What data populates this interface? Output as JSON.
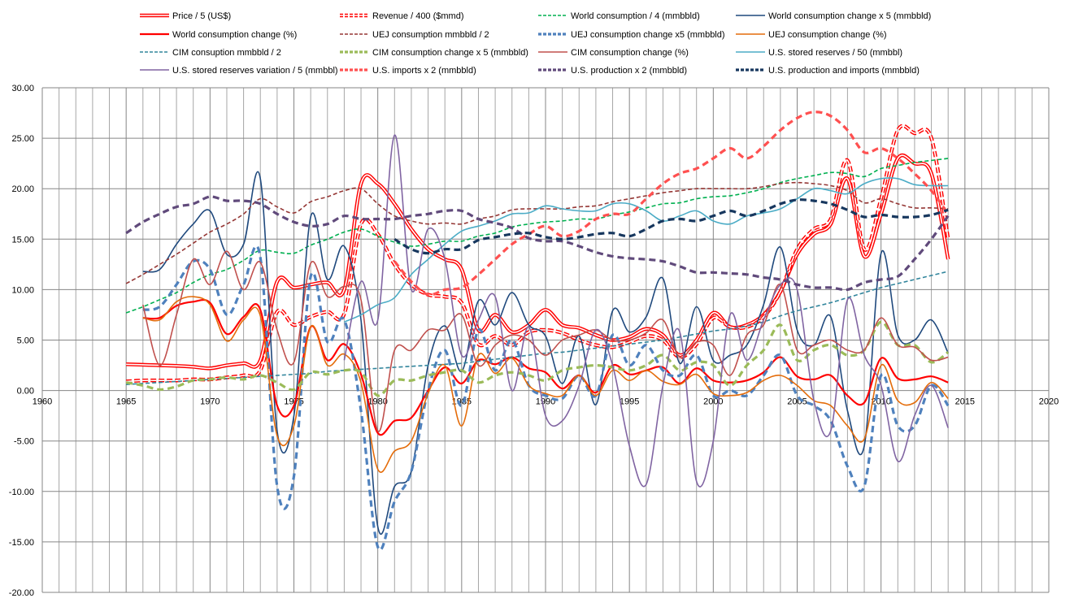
{
  "chart_data": {
    "type": "line",
    "title": "",
    "xlabel": "",
    "ylabel": "",
    "xlim": [
      1960,
      2020
    ],
    "ylim": [
      -20,
      30
    ],
    "x_ticks": [
      1960,
      1965,
      1970,
      1975,
      1980,
      1985,
      1990,
      1995,
      2000,
      2005,
      2010,
      2015,
      2020
    ],
    "y_ticks": [
      "30.00",
      "25.00",
      "20.00",
      "15.00",
      "10.00",
      "5.00",
      "0.00",
      "-5.00",
      "-10.00",
      "-15.00",
      "-20.00"
    ],
    "y_tick_values": [
      30,
      25,
      20,
      15,
      10,
      5,
      0,
      -5,
      -10,
      -15,
      -20
    ],
    "grid": true,
    "legend_position": "top",
    "series": [
      {
        "name": "Price / 5 (US$)",
        "color": "#ff0000",
        "style": "double",
        "start": 1965,
        "values": [
          2.6,
          2.55,
          2.5,
          2.45,
          2.35,
          2.2,
          2.5,
          2.7,
          3.0,
          10.8,
          10.2,
          10.5,
          10.7,
          10.0,
          20.5,
          20.5,
          18.5,
          16,
          14,
          13,
          12,
          6,
          7.5,
          5.8,
          6.5,
          8.0,
          6.5,
          6.2,
          5.5,
          5.0,
          5.3,
          6.1,
          5.5,
          3.5,
          5.0,
          7.7,
          6.3,
          6.5,
          7.5,
          9.8,
          13.5,
          15.5,
          16.5,
          21,
          13.3,
          17.5,
          23,
          22.5,
          21.5,
          13
        ]
      },
      {
        "name": "Revenue / 400 ($mmd)",
        "color": "#ff0000",
        "style": "double-dash",
        "start": 1965,
        "values": [
          0.9,
          1.0,
          1.0,
          1.0,
          1.1,
          1.1,
          1.3,
          1.5,
          2.0,
          7.8,
          6.5,
          7.3,
          7.8,
          7.6,
          16.5,
          15.5,
          12.5,
          10.5,
          9.5,
          9.3,
          8.7,
          4.6,
          5.4,
          4.5,
          5.8,
          6.0,
          5.7,
          5.0,
          4.5,
          4.3,
          4.8,
          5.4,
          5.0,
          3.3,
          4.6,
          7.2,
          6.3,
          6.3,
          7.3,
          9.8,
          14,
          16,
          17,
          22.8,
          14.0,
          19,
          25.8,
          25.5,
          25.0,
          15
        ]
      },
      {
        "name": "World consumption / 4 (mmbbld)",
        "color": "#00b050",
        "style": "dash-thin",
        "start": 1965,
        "values": [
          7.7,
          8.3,
          9.0,
          9.7,
          10.7,
          11.5,
          12.0,
          12.9,
          13.9,
          13.7,
          13.6,
          14.4,
          15.0,
          15.7,
          16.0,
          15.3,
          14.7,
          14.3,
          14.5,
          14.8,
          14.8,
          15.3,
          15.6,
          16.2,
          16.5,
          16.7,
          16.8,
          17.0,
          17.0,
          17.4,
          17.7,
          18.1,
          18.5,
          18.6,
          19.0,
          19.2,
          19.3,
          19.6,
          20.0,
          20.6,
          21.0,
          21.3,
          21.6,
          21.5,
          21.2,
          22.0,
          22.3,
          22.6,
          22.8,
          23.0
        ]
      },
      {
        "name": "World consumption change x 5 (mmbbld)",
        "color": "#1f497d",
        "style": "solid",
        "start": 1966,
        "values": [
          11.8,
          12.0,
          14.5,
          16.5,
          17.8,
          13.5,
          14.5,
          21.0,
          -4.0,
          -2.5,
          17.2,
          11.0,
          14.3,
          7.0,
          -13.5,
          -9.5,
          -8,
          2.5,
          6.4,
          1.9,
          8.9,
          6.5,
          9.7,
          6.5,
          5.4,
          0.7,
          5.4,
          -1.4,
          7.9,
          5.8,
          7.3,
          11.1,
          2.7,
          8.3,
          3.0,
          3.5,
          4.5,
          8.5,
          14.2,
          6,
          4.5,
          7.3,
          -2,
          -5.5,
          13.6,
          5.5,
          5,
          7,
          3.7
        ]
      },
      {
        "name": "World consumption change (%)",
        "color": "#ff0000",
        "style": "solid-thick",
        "start": 1966,
        "values": [
          7.2,
          7.2,
          8.4,
          8.8,
          8.7,
          5.6,
          7.3,
          8.0,
          -1.5,
          -1.5,
          6.3,
          3.0,
          4.6,
          1.6,
          -4.2,
          -3.0,
          -2.7,
          0,
          2.3,
          0.7,
          3.0,
          2.6,
          3.3,
          2.2,
          1.8,
          0.2,
          1.5,
          -0.2,
          2.5,
          1.6,
          2.0,
          2.3,
          0.7,
          2.2,
          1.0,
          0.8,
          1.0,
          1.8,
          3.3,
          1.4,
          1.1,
          1.5,
          -0.5,
          -1.2,
          3.2,
          1.2,
          1.1,
          1.4,
          0.8
        ]
      },
      {
        "name": "UEJ consumption mmbbld / 2",
        "color": "#953735",
        "style": "dash-thin",
        "start": 1965,
        "values": [
          10.6,
          11.5,
          12.5,
          13.5,
          14.6,
          15.7,
          16.5,
          17.5,
          19.0,
          18.2,
          17.6,
          18.7,
          19.2,
          19.8,
          20.0,
          18.5,
          17.3,
          16.8,
          16.5,
          16.6,
          16.5,
          17.0,
          17.3,
          17.9,
          18.0,
          18.0,
          18.0,
          18.2,
          18.3,
          18.7,
          19.0,
          19.3,
          19.6,
          19.8,
          20.0,
          20.0,
          20.0,
          20.0,
          20.2,
          20.5,
          20.6,
          20.5,
          20.3,
          19.8,
          18.6,
          19.0,
          18.5,
          18.1,
          18.1,
          18.0
        ]
      },
      {
        "name": "UEJ consumption change x5 (mmbbld)",
        "color": "#4f81bd",
        "style": "dash-thick",
        "start": 1966,
        "values": [
          8.0,
          8.3,
          10.5,
          12.8,
          12.0,
          7.5,
          10.5,
          13.2,
          -9.5,
          -8.5,
          11.3,
          4.8,
          7.0,
          -2,
          -15.5,
          -11,
          -8,
          0.0,
          4.0,
          -1.5,
          6.0,
          2.0,
          5.0,
          0.5,
          -0.5,
          -0.8,
          1.5,
          -0.5,
          5.5,
          2.5,
          4.5,
          2.0,
          1.5,
          3.5,
          -0.5,
          0.0,
          -0.5,
          1.5,
          3.5,
          -0.5,
          -1.5,
          -3,
          -7.5,
          -9.5,
          1.5,
          -3.5,
          -3.5,
          0.5,
          -1.5
        ]
      },
      {
        "name": "UEJ consumption change (%)",
        "color": "#e46c0a",
        "style": "solid",
        "start": 1966,
        "values": [
          7.2,
          7.0,
          8.8,
          9.3,
          8.5,
          4.9,
          7.0,
          7.4,
          -4.5,
          -3.5,
          6.3,
          2.5,
          3.6,
          0.8,
          -7.8,
          -6,
          -5,
          -0.3,
          2.5,
          -3.5,
          3.5,
          1.7,
          3.2,
          0.5,
          -0.3,
          -0.5,
          1.5,
          -0.5,
          2.0,
          1.0,
          2.0,
          0.9,
          0.6,
          1.6,
          -0.3,
          -0.5,
          -0.2,
          1.0,
          1.5,
          0.5,
          -1.0,
          -1.5,
          -3.5,
          -4.8,
          2.5,
          -1.0,
          -1.2,
          0.8,
          -0.8
        ]
      },
      {
        "name": "CIM consuption mmbbld / 2",
        "color": "#31859c",
        "style": "dash-thin",
        "start": 1965,
        "values": [
          0.6,
          0.7,
          0.8,
          0.9,
          1.0,
          1.1,
          1.2,
          1.3,
          1.4,
          1.5,
          1.6,
          1.7,
          1.9,
          2.0,
          2.1,
          2.2,
          2.3,
          2.4,
          2.5,
          2.6,
          2.7,
          2.9,
          3.1,
          3.3,
          3.5,
          3.7,
          3.8,
          4.0,
          4.2,
          4.4,
          4.6,
          4.8,
          5.0,
          5.3,
          5.6,
          5.9,
          6.1,
          6.4,
          6.8,
          7.4,
          7.9,
          8.3,
          8.7,
          9.2,
          9.7,
          10.2,
          10.6,
          11.0,
          11.4,
          11.8
        ]
      },
      {
        "name": "CIM consumption change x 5 (mmbbld)",
        "color": "#9bbb59",
        "style": "dash-thick",
        "start": 1965,
        "values": [
          0.8,
          0.5,
          0.1,
          0.4,
          1.0,
          1.1,
          1.3,
          1.1,
          1.5,
          0.8,
          0.1,
          1.8,
          1.6,
          2.0,
          1.8,
          -0.5,
          1.0,
          1.0,
          1.5,
          1.8,
          2.0,
          0.8,
          1.5,
          1.8,
          1.5,
          1.0,
          2.0,
          2.3,
          2.5,
          2.3,
          2.0,
          2.5,
          3.5,
          2.0,
          2.8,
          2.5,
          0.5,
          2.5,
          4.0,
          6.5,
          3.0,
          4.0,
          4.5,
          3.5,
          4.0,
          6.8,
          4.5,
          4.5,
          2.8,
          3.8
        ]
      },
      {
        "name": "CIM consumption change (%)",
        "color": "#c0504d",
        "style": "solid",
        "start": 1966,
        "values": [
          8.5,
          2.5,
          7.5,
          13,
          10.5,
          13.8,
          10.0,
          12.7,
          6,
          2.8,
          12.6,
          9.3,
          10.3,
          9.0,
          -4.0,
          4.0,
          4.0,
          6.0,
          6.0,
          7.5,
          2.5,
          4.5,
          5.5,
          5.0,
          3.5,
          5.0,
          5.5,
          6.0,
          5.0,
          5.0,
          5.7,
          7.0,
          3.3,
          4.8,
          4.5,
          1.5,
          5.5,
          6.5,
          10.5,
          4.0,
          4.5,
          5.0,
          4.0,
          4.0,
          7.2,
          4.5,
          4.3,
          3.0,
          3.3
        ]
      },
      {
        "name": "U.S. stored reserves / 50 (mmbbl)",
        "color": "#4bacc6",
        "style": "solid",
        "start": 1978,
        "values": [
          6.8,
          7.5,
          8.5,
          9.2,
          11.5,
          13.0,
          14.5,
          15.8,
          16.3,
          16.8,
          17.5,
          17.6,
          18.3,
          18.0,
          17.8,
          17.8,
          18.5,
          18.5,
          17.8,
          16.8,
          17.3,
          17.8,
          16.8,
          16.5,
          17.3,
          17.6,
          18.0,
          19.0,
          20.0,
          19.8,
          19.5,
          20.5,
          21.0,
          21.0,
          20.4,
          20.3,
          20.3
        ]
      },
      {
        "name": "U.S. stored reserves variation / 5 (mmbbl)",
        "color": "#8064a2",
        "style": "solid",
        "start": 1978,
        "values": [
          3.0,
          10.8,
          7.0,
          25.3,
          10.0,
          16,
          13,
          3.5,
          7.0,
          9.3,
          0.0,
          6.3,
          -2.5,
          -3.0,
          0.5,
          6.0,
          2.5,
          -5.5,
          -9.3,
          0.5,
          5.8,
          -9.0,
          -5,
          7.5,
          3.0,
          7.0,
          10.5,
          10.0,
          -1,
          -4.0,
          9.0,
          3.5,
          0.5,
          -7.0,
          -2.5,
          0.5,
          -3.7
        ]
      },
      {
        "name": "U.S. imports x 2 (mmbbld)",
        "color": "#ff5050",
        "style": "dash-thick",
        "start": 1981,
        "values": [
          12.8,
          10.8,
          9.5,
          10.0,
          10.2,
          11.5,
          13.0,
          14.5,
          15.5,
          16.3,
          15.3,
          15.8,
          17.0,
          17.5,
          17.5,
          19.0,
          20.5,
          21.5,
          22.0,
          23.0,
          24.0,
          23.0,
          24.2,
          25.8,
          27.0,
          27.6,
          27.2,
          25.8,
          23.6,
          24.0,
          23.0,
          21.5,
          19.8,
          17.5
        ]
      },
      {
        "name": "U.S. production x 2 (mmbbld)",
        "color": "#604a7b",
        "style": "dash-thick",
        "start": 1965,
        "values": [
          15.6,
          16.7,
          17.5,
          18.2,
          18.5,
          19.2,
          18.8,
          18.8,
          18.5,
          17.5,
          16.7,
          16.3,
          16.5,
          17.3,
          17.0,
          17.0,
          17.0,
          17.3,
          17.5,
          17.8,
          17.8,
          17.0,
          16.6,
          16.1,
          15.1,
          14.8,
          14.8,
          14.3,
          13.7,
          13.3,
          13.1,
          13.0,
          12.8,
          12.3,
          11.7,
          11.7,
          11.6,
          11.5,
          11.2,
          11.0,
          10.5,
          10.2,
          10.2,
          10.0,
          10.7,
          11.0,
          11.3,
          13.0,
          15.0,
          17.3
        ]
      },
      {
        "name": "U.S. production and imports (mmbbld)",
        "color": "#17375e",
        "style": "dash-thick",
        "start": 1981,
        "values": [
          15.0,
          14.0,
          13.6,
          14.0,
          14.0,
          14.9,
          15.2,
          15.5,
          15.6,
          15.2,
          15.0,
          15.2,
          15.5,
          15.6,
          15.3,
          16.0,
          16.8,
          17.0,
          16.8,
          17.3,
          17.8,
          17.3,
          17.8,
          18.5,
          18.9,
          18.8,
          18.5,
          17.9,
          17.2,
          17.4,
          17.2,
          17.2,
          17.4,
          17.9
        ]
      }
    ]
  }
}
